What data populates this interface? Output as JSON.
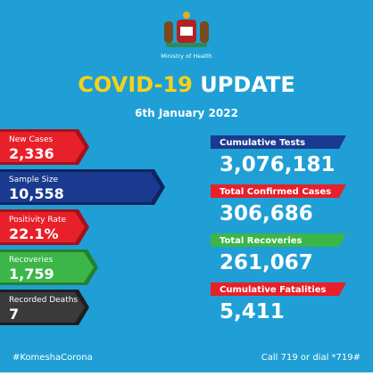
{
  "header": {
    "ministry": "Ministry of Health",
    "title_highlight": "COVID-19",
    "title_rest": "UPDATE",
    "date": "6th January 2022"
  },
  "left_stats": [
    {
      "label": "New Cases",
      "value": "2,336"
    },
    {
      "label": "Sample Size",
      "value": "10,558"
    },
    {
      "label": "Positivity Rate",
      "value": "22.1%"
    },
    {
      "label": "Recoveries",
      "value": "1,759"
    },
    {
      "label": "Recorded Deaths",
      "value": "7"
    }
  ],
  "right_stats": [
    {
      "label": "Cumulative Tests",
      "value": "3,076,181"
    },
    {
      "label": "Total Confirmed Cases",
      "value": "306,686"
    },
    {
      "label": "Total Recoveries",
      "value": "261,067"
    },
    {
      "label": "Cumulative Fatalities",
      "value": "5,411"
    }
  ],
  "footer": {
    "hashtag": "#KomeshaCorona",
    "contact": "Call 719 or dial *719#"
  }
}
